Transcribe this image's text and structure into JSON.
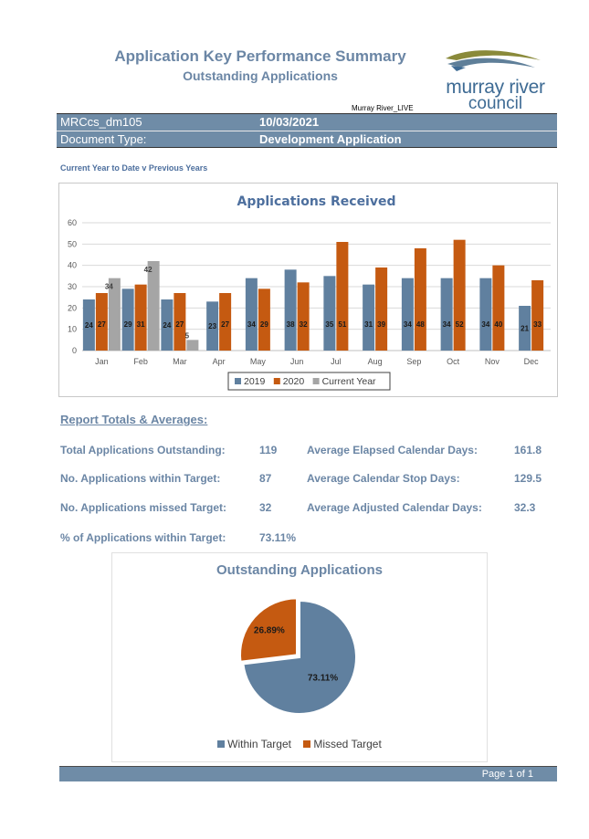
{
  "header": {
    "title": "Application Key Performance Summary",
    "subtitle": "Outstanding Applications",
    "environment": "Murray River_LIVE",
    "logo": {
      "line1": "murray river",
      "line2": "council",
      "colors": {
        "olive": "#8a8a3a",
        "slate": "#5f7f99",
        "text": "#3e6b94"
      }
    }
  },
  "info": {
    "report_code": "MRCcs_dm105",
    "date": "10/03/2021",
    "doc_type_label": "Document Type:",
    "doc_type_value": "Development Application"
  },
  "ytd_note": "Current Year to Date v Previous Years",
  "chart_data": [
    {
      "type": "bar",
      "title": "Applications Received",
      "categories": [
        "Jan",
        "Feb",
        "Mar",
        "Apr",
        "May",
        "Jun",
        "Jul",
        "Aug",
        "Sep",
        "Oct",
        "Nov",
        "Dec"
      ],
      "series": [
        {
          "name": "2019",
          "color": "#60809f",
          "values": [
            24,
            29,
            24,
            23,
            34,
            38,
            35,
            31,
            34,
            34,
            34,
            21
          ]
        },
        {
          "name": "2020",
          "color": "#c55a11",
          "values": [
            27,
            31,
            27,
            27,
            29,
            32,
            51,
            39,
            48,
            52,
            40,
            33
          ]
        },
        {
          "name": "Current Year",
          "color": "#a5a5a5",
          "values": [
            34,
            42,
            5,
            null,
            null,
            null,
            null,
            null,
            null,
            null,
            null,
            null
          ]
        }
      ],
      "ylim": [
        0,
        60
      ],
      "yticks": [
        0,
        10,
        20,
        30,
        40,
        50,
        60
      ],
      "grid": true,
      "legend": "bottom"
    },
    {
      "type": "pie",
      "title": "Outstanding Applications",
      "slices": [
        {
          "name": "Within Target",
          "value": 73.11,
          "label": "73.11%",
          "color": "#60809f"
        },
        {
          "name": "Missed Target",
          "value": 26.89,
          "label": "26.89%",
          "color": "#c55a11"
        }
      ],
      "legend": "bottom"
    }
  ],
  "totals": {
    "heading": "Report Totals & Averages:",
    "items": [
      {
        "label": "Total Applications Outstanding:",
        "value": "119"
      },
      {
        "label": "No. Applications within Target:",
        "value": "87"
      },
      {
        "label": "No. Applications missed Target:",
        "value": "32"
      },
      {
        "label": "% of Applications within Target:",
        "value": "73.11%"
      }
    ],
    "averages": [
      {
        "label": "Average Elapsed Calendar Days:",
        "value": "161.8"
      },
      {
        "label": "Average Calendar Stop Days:",
        "value": "129.5"
      },
      {
        "label": "Average Adjusted Calendar Days:",
        "value": "32.3"
      }
    ]
  },
  "footer": {
    "page": "Page 1 of 1"
  }
}
